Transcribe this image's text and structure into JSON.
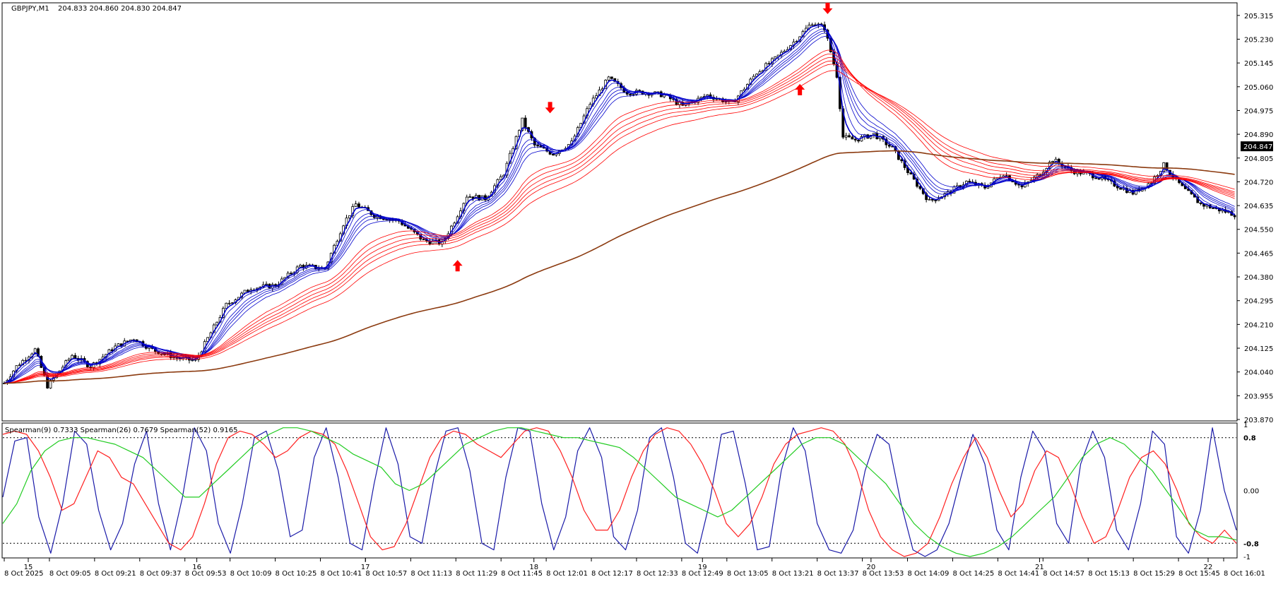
{
  "window": {
    "symbol_label": "GBPJPY,M1",
    "ohlc_label": "204.833 204.860 204.830 204.847"
  },
  "colors": {
    "background": "#ffffff",
    "candle": "#000000",
    "ema_fast": "#0000cc",
    "ema_mid": "#ff0000",
    "ema_slow": "#8b3a0f",
    "spearman_fast": "#1a1aa8",
    "spearman_mid": "#ff2020",
    "spearman_slow": "#22cc22",
    "arrow": "#ff0000",
    "current_price_bg": "#000000"
  },
  "chart_data": [
    {
      "type": "candlestick",
      "title": "GBPJPY,M1",
      "ylim": [
        203.87,
        205.355
      ],
      "y_ticks": [
        "205.315",
        "205.230",
        "205.145",
        "205.060",
        "204.975",
        "204.890",
        "204.805",
        "204.720",
        "204.635",
        "204.550",
        "204.465",
        "204.380",
        "204.295",
        "204.210",
        "204.125",
        "204.040",
        "203.955",
        "203.870"
      ],
      "current_price": "204.847",
      "time_labels": [
        "8 Oct 2025",
        "8 Oct 09:05",
        "8 Oct 09:21",
        "8 Oct 09:37",
        "8 Oct 09:53",
        "8 Oct 10:09",
        "8 Oct 10:25",
        "8 Oct 10:41",
        "8 Oct 10:57",
        "8 Oct 11:13",
        "8 Oct 11:29",
        "8 Oct 11:45",
        "8 Oct 12:01",
        "8 Oct 12:17",
        "8 Oct 12:33",
        "8 Oct 12:49",
        "8 Oct 13:05",
        "8 Oct 13:21",
        "8 Oct 13:37",
        "8 Oct 13:53",
        "8 Oct 14:09",
        "8 Oct 14:25",
        "8 Oct 14:41",
        "8 Oct 14:57",
        "8 Oct 15:13",
        "8 Oct 15:29",
        "8 Oct 15:45",
        "8 Oct 16:01"
      ],
      "day_labels": [
        "15",
        "16",
        "17",
        "18",
        "19",
        "20",
        "21",
        "22"
      ],
      "price_path": [
        [
          0,
          204.0
        ],
        [
          4,
          204.06
        ],
        [
          10,
          204.12
        ],
        [
          14,
          203.99
        ],
        [
          22,
          204.1
        ],
        [
          28,
          204.06
        ],
        [
          36,
          204.13
        ],
        [
          42,
          204.16
        ],
        [
          48,
          204.12
        ],
        [
          56,
          204.09
        ],
        [
          62,
          204.08
        ],
        [
          66,
          204.16
        ],
        [
          72,
          204.28
        ],
        [
          80,
          204.34
        ],
        [
          88,
          204.35
        ],
        [
          96,
          204.42
        ],
        [
          104,
          204.41
        ],
        [
          110,
          204.57
        ],
        [
          114,
          204.64
        ],
        [
          120,
          204.6
        ],
        [
          128,
          204.58
        ],
        [
          136,
          204.51
        ],
        [
          142,
          204.5
        ],
        [
          146,
          204.58
        ],
        [
          150,
          204.67
        ],
        [
          156,
          204.66
        ],
        [
          162,
          204.75
        ],
        [
          168,
          204.94
        ],
        [
          172,
          204.85
        ],
        [
          178,
          204.82
        ],
        [
          184,
          204.86
        ],
        [
          190,
          205.0
        ],
        [
          196,
          205.09
        ],
        [
          202,
          205.04
        ],
        [
          208,
          205.04
        ],
        [
          214,
          205.03
        ],
        [
          220,
          204.99
        ],
        [
          228,
          205.03
        ],
        [
          236,
          205.0
        ],
        [
          244,
          205.11
        ],
        [
          250,
          205.16
        ],
        [
          256,
          205.22
        ],
        [
          262,
          205.29
        ],
        [
          266,
          205.27
        ],
        [
          270,
          205.1
        ],
        [
          272,
          204.88
        ],
        [
          276,
          204.87
        ],
        [
          282,
          204.89
        ],
        [
          288,
          204.84
        ],
        [
          294,
          204.74
        ],
        [
          300,
          204.65
        ],
        [
          306,
          204.68
        ],
        [
          312,
          204.72
        ],
        [
          318,
          204.7
        ],
        [
          324,
          204.75
        ],
        [
          330,
          204.7
        ],
        [
          336,
          204.75
        ],
        [
          340,
          204.8
        ],
        [
          346,
          204.76
        ],
        [
          354,
          204.74
        ],
        [
          360,
          204.71
        ],
        [
          366,
          204.68
        ],
        [
          372,
          204.72
        ],
        [
          376,
          204.78
        ],
        [
          382,
          204.7
        ],
        [
          388,
          204.64
        ],
        [
          394,
          204.62
        ],
        [
          400,
          204.6
        ]
      ],
      "signals": [
        {
          "index": 177,
          "direction": "down",
          "price": 204.965
        },
        {
          "index": 147,
          "direction": "up",
          "price": 204.44
        },
        {
          "index": 258,
          "direction": "up",
          "price": 205.07
        },
        {
          "index": 267,
          "direction": "down",
          "price": 205.32
        }
      ]
    },
    {
      "type": "line",
      "indicator_label": "Spearman(9) 0.7333  Spearman(26) 0.7679  Spearman(52) 0.9165",
      "ylim": [
        -1,
        1
      ],
      "y_ticks": [
        "1",
        "0.8",
        "0.00",
        "-0.8",
        "-1"
      ],
      "levels": [
        0.8,
        -0.8
      ],
      "series": [
        {
          "values": [
            -0.1,
            0.75,
            0.8,
            -0.4,
            -0.95,
            -0.2,
            0.9,
            0.7,
            -0.3,
            -0.9,
            -0.5,
            0.4,
            0.9,
            -0.2,
            -0.9,
            -0.1,
            0.95,
            0.6,
            -0.5,
            -0.95,
            -0.2,
            0.8,
            0.9,
            0.3,
            -0.7,
            -0.6,
            0.5,
            0.95,
            0.2,
            -0.8,
            -0.9,
            0.1,
            0.95,
            0.4,
            -0.7,
            -0.8,
            0.2,
            0.9,
            0.95,
            0.3,
            -0.8,
            -0.9,
            0.2,
            0.95,
            0.9,
            -0.2,
            -0.9,
            -0.4,
            0.6,
            0.95,
            0.5,
            -0.7,
            -0.9,
            -0.3,
            0.8,
            0.95,
            0.2,
            -0.8,
            -0.95,
            -0.2,
            0.85,
            0.9,
            0.1,
            -0.9,
            -0.85,
            0.3,
            0.95,
            0.6,
            -0.5,
            -0.9,
            -0.95,
            -0.6,
            0.3,
            0.85,
            0.7,
            -0.2,
            -0.9,
            -1.0,
            -0.9,
            -0.5,
            0.2,
            0.85,
            0.4,
            -0.6,
            -0.9,
            0.2,
            0.9,
            0.6,
            -0.5,
            -0.8,
            0.4,
            0.9,
            0.5,
            -0.6,
            -0.9,
            -0.2,
            0.9,
            0.7,
            -0.7,
            -0.95,
            -0.3,
            0.95,
            0.0,
            -0.6
          ]
        },
        {
          "values": [
            0.85,
            0.9,
            0.85,
            0.6,
            0.2,
            -0.3,
            -0.2,
            0.2,
            0.6,
            0.5,
            0.2,
            0.1,
            -0.2,
            -0.5,
            -0.8,
            -0.9,
            -0.7,
            -0.2,
            0.4,
            0.8,
            0.9,
            0.85,
            0.7,
            0.5,
            0.6,
            0.8,
            0.9,
            0.85,
            0.7,
            0.3,
            -0.2,
            -0.7,
            -0.9,
            -0.85,
            -0.5,
            0.0,
            0.5,
            0.8,
            0.9,
            0.85,
            0.7,
            0.6,
            0.5,
            0.7,
            0.9,
            0.95,
            0.9,
            0.6,
            0.2,
            -0.3,
            -0.6,
            -0.6,
            -0.3,
            0.2,
            0.6,
            0.85,
            0.95,
            0.9,
            0.7,
            0.4,
            0.0,
            -0.5,
            -0.7,
            -0.5,
            -0.1,
            0.4,
            0.7,
            0.85,
            0.9,
            0.95,
            0.9,
            0.7,
            0.3,
            -0.3,
            -0.7,
            -0.9,
            -1.0,
            -0.95,
            -0.8,
            -0.4,
            0.1,
            0.5,
            0.8,
            0.5,
            0.0,
            -0.4,
            -0.2,
            0.3,
            0.6,
            0.5,
            0.1,
            -0.4,
            -0.8,
            -0.7,
            -0.3,
            0.2,
            0.5,
            0.6,
            0.4,
            0.0,
            -0.5,
            -0.7,
            -0.8,
            -0.6,
            -0.8
          ]
        },
        {
          "values": [
            -0.5,
            -0.2,
            0.3,
            0.6,
            0.75,
            0.8,
            0.8,
            0.75,
            0.7,
            0.6,
            0.5,
            0.3,
            0.1,
            -0.1,
            -0.1,
            0.1,
            0.3,
            0.5,
            0.7,
            0.85,
            0.95,
            0.95,
            0.9,
            0.8,
            0.7,
            0.55,
            0.45,
            0.35,
            0.1,
            0.0,
            0.1,
            0.3,
            0.5,
            0.7,
            0.8,
            0.9,
            0.95,
            0.95,
            0.9,
            0.85,
            0.8,
            0.8,
            0.75,
            0.7,
            0.65,
            0.5,
            0.3,
            0.1,
            -0.1,
            -0.2,
            -0.3,
            -0.4,
            -0.3,
            -0.1,
            0.1,
            0.3,
            0.5,
            0.7,
            0.8,
            0.8,
            0.7,
            0.5,
            0.3,
            0.1,
            -0.2,
            -0.5,
            -0.7,
            -0.85,
            -0.95,
            -1.0,
            -0.95,
            -0.85,
            -0.7,
            -0.5,
            -0.3,
            -0.1,
            0.2,
            0.5,
            0.7,
            0.8,
            0.7,
            0.5,
            0.3,
            0.0,
            -0.3,
            -0.6,
            -0.7,
            -0.7,
            -0.75
          ]
        }
      ]
    }
  ]
}
